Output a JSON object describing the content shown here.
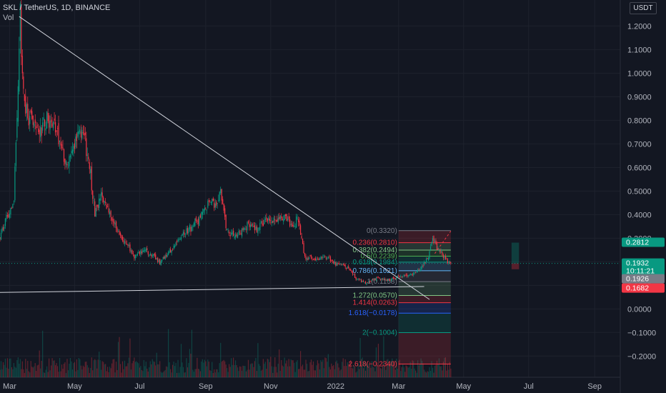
{
  "header": {
    "symbol": "SKL / TetherUS, 1D, BINANCE",
    "vol_label": "Vol",
    "currency": "USDT"
  },
  "chart_data": {
    "type": "candlestick",
    "symbol": "SKL / TetherUS",
    "interval": "1D",
    "exchange": "BINANCE",
    "y_range": [
      -0.29,
      1.28
    ],
    "y_ticks": [
      -0.2,
      -0.1,
      0.0,
      0.1,
      0.2,
      0.3,
      0.4,
      0.5,
      0.6,
      0.7,
      0.8,
      0.9,
      1.0,
      1.1,
      1.2
    ],
    "y_tick_labels": [
      "−0.2000",
      "−0.1000",
      "0.0000",
      "0.1000",
      "0.2000",
      "0.3000",
      "0.4000",
      "0.5000",
      "0.6000",
      "0.7000",
      "0.8000",
      "0.9000",
      "1.0000",
      "1.1000",
      "1.2000"
    ],
    "x_range": [
      "2021-02-20",
      "2022-09-25"
    ],
    "x_ticks": [
      {
        "date": "2021-03-01",
        "label": "Mar"
      },
      {
        "date": "2021-05-01",
        "label": "May"
      },
      {
        "date": "2021-07-01",
        "label": "Jul"
      },
      {
        "date": "2021-09-01",
        "label": "Sep"
      },
      {
        "date": "2021-11-01",
        "label": "Nov"
      },
      {
        "date": "2022-01-01",
        "label": "2022"
      },
      {
        "date": "2022-03-01",
        "label": "Mar"
      },
      {
        "date": "2022-05-01",
        "label": "May"
      },
      {
        "date": "2022-07-01",
        "label": "Jul"
      },
      {
        "date": "2022-09-01",
        "label": "Sep"
      }
    ],
    "price_path": [
      [
        "2021-02-20",
        0.3
      ],
      [
        "2021-02-25",
        0.38
      ],
      [
        "2021-03-05",
        0.45
      ],
      [
        "2021-03-11",
        1.24
      ],
      [
        "2021-03-14",
        0.9
      ],
      [
        "2021-03-20",
        0.8
      ],
      [
        "2021-03-28",
        0.74
      ],
      [
        "2021-04-05",
        0.81
      ],
      [
        "2021-04-12",
        0.77
      ],
      [
        "2021-04-18",
        0.68
      ],
      [
        "2021-04-24",
        0.6
      ],
      [
        "2021-05-01",
        0.7
      ],
      [
        "2021-05-08",
        0.76
      ],
      [
        "2021-05-15",
        0.62
      ],
      [
        "2021-05-20",
        0.4
      ],
      [
        "2021-05-26",
        0.48
      ],
      [
        "2021-06-02",
        0.42
      ],
      [
        "2021-06-10",
        0.32
      ],
      [
        "2021-06-20",
        0.27
      ],
      [
        "2021-06-26",
        0.22
      ],
      [
        "2021-07-05",
        0.25
      ],
      [
        "2021-07-15",
        0.22
      ],
      [
        "2021-07-20",
        0.2
      ],
      [
        "2021-08-01",
        0.26
      ],
      [
        "2021-08-12",
        0.32
      ],
      [
        "2021-08-25",
        0.38
      ],
      [
        "2021-09-06",
        0.46
      ],
      [
        "2021-09-10",
        0.44
      ],
      [
        "2021-09-15",
        0.49
      ],
      [
        "2021-09-21",
        0.33
      ],
      [
        "2021-09-30",
        0.31
      ],
      [
        "2021-10-10",
        0.35
      ],
      [
        "2021-10-20",
        0.34
      ],
      [
        "2021-10-28",
        0.38
      ],
      [
        "2021-11-05",
        0.37
      ],
      [
        "2021-11-15",
        0.39
      ],
      [
        "2021-11-22",
        0.34
      ],
      [
        "2021-11-26",
        0.4
      ],
      [
        "2021-12-03",
        0.22
      ],
      [
        "2021-12-15",
        0.21
      ],
      [
        "2021-12-25",
        0.22
      ],
      [
        "2022-01-01",
        0.19
      ],
      [
        "2022-01-10",
        0.18
      ],
      [
        "2022-01-20",
        0.13
      ],
      [
        "2022-01-28",
        0.11
      ],
      [
        "2022-02-08",
        0.13
      ],
      [
        "2022-02-20",
        0.12
      ],
      [
        "2022-03-01",
        0.14
      ],
      [
        "2022-03-12",
        0.14
      ],
      [
        "2022-03-22",
        0.18
      ],
      [
        "2022-03-28",
        0.21
      ],
      [
        "2022-04-02",
        0.31
      ],
      [
        "2022-04-06",
        0.26
      ],
      [
        "2022-04-12",
        0.22
      ],
      [
        "2022-04-19",
        0.19
      ]
    ],
    "price_labels": [
      {
        "value": 0.2812,
        "label": "0.2812",
        "color": "#089981"
      },
      {
        "value": 0.1932,
        "label": "0.1932",
        "countdown": "10:11:21",
        "color": "#089981"
      },
      {
        "value": 0.1926,
        "label": "0.1926",
        "color": "#787b86"
      },
      {
        "value": 0.1682,
        "label": "0.1682",
        "color": "#f23645"
      }
    ],
    "fibonacci": {
      "x_range": [
        "2022-03-01",
        "2022-04-19"
      ],
      "levels": [
        {
          "ratio": "0",
          "value": 0.332,
          "label": "0(0.3320)",
          "color": "#787b86"
        },
        {
          "ratio": "0.236",
          "value": 0.281,
          "label": "0.236(0.2810)",
          "color": "#f23645"
        },
        {
          "ratio": "0.382",
          "value": 0.2494,
          "label": "0.382(0.2494)",
          "color": "#81c784"
        },
        {
          "ratio": "0.5",
          "value": 0.2239,
          "label": "0.5(0.2239)",
          "color": "#4caf50"
        },
        {
          "ratio": "0.618",
          "value": 0.1984,
          "label": "0.618(0.1984)",
          "color": "#089981"
        },
        {
          "ratio": "0.786",
          "value": 0.1621,
          "label": "0.786(0.1621)",
          "color": "#64b5f6"
        },
        {
          "ratio": "1",
          "value": 0.1158,
          "label": "1(0.1158)",
          "color": "#787b86"
        },
        {
          "ratio": "1.272",
          "value": 0.057,
          "label": "1.272(0.0570)",
          "color": "#81c784"
        },
        {
          "ratio": "1.414",
          "value": 0.0263,
          "label": "1.414(0.0263)",
          "color": "#f23645"
        },
        {
          "ratio": "1.618",
          "value": -0.0178,
          "label": "1.618(−0.0178)",
          "color": "#2962ff"
        },
        {
          "ratio": "2",
          "value": -0.1004,
          "label": "2(−0.1004)",
          "color": "#089981"
        },
        {
          "ratio": "2.618",
          "value": -0.234,
          "label": "2.618(−0.2340)",
          "color": "#f23645"
        }
      ]
    },
    "trendlines": [
      {
        "from": [
          "2021-03-10",
          1.24
        ],
        "to": [
          "2022-03-30",
          0.04
        ],
        "color": "#d1d4dc"
      },
      {
        "from": [
          "2021-02-20",
          0.07
        ],
        "to": [
          "2022-03-25",
          0.095
        ],
        "color": "#d1d4dc"
      },
      {
        "from": [
          "2022-04-04",
          0.235
        ],
        "to": [
          "2022-04-19",
          0.33
        ],
        "color": "#f23645",
        "dashed": true
      }
    ],
    "position_box": {
      "x_range": [
        "2022-06-15",
        "2022-06-22"
      ],
      "entry": 0.1932,
      "target": 0.2812,
      "stop": 0.1682,
      "profit_color": "#089981",
      "loss_color": "#f23645"
    },
    "up_color": "#089981",
    "down_color": "#f23645"
  }
}
